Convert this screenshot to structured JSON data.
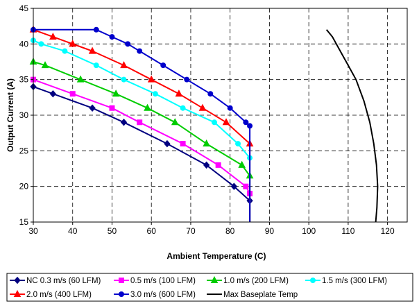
{
  "chart_data": {
    "type": "line",
    "title": "",
    "xlabel": "Ambient Temperature (C)",
    "ylabel": "Output Current (A)",
    "xlim": [
      30,
      125
    ],
    "ylim": [
      15,
      45
    ],
    "xticks": [
      30,
      40,
      50,
      60,
      70,
      80,
      90,
      100,
      110,
      120
    ],
    "yticks": [
      15,
      20,
      25,
      30,
      35,
      40,
      45
    ],
    "grid": true,
    "legend_position": "bottom",
    "series": [
      {
        "name": "NC 0.3 m/s (60 LFM)",
        "color": "#000080",
        "marker": "diamond",
        "x": [
          30,
          35,
          45,
          53,
          64,
          74,
          81,
          85,
          85
        ],
        "y": [
          34,
          33,
          31,
          29,
          26,
          23,
          20,
          18,
          15
        ]
      },
      {
        "name": "0.5 m/s (100 LFM)",
        "color": "#FF00FF",
        "marker": "square",
        "x": [
          30,
          40,
          50,
          57,
          68,
          77,
          84,
          85,
          85
        ],
        "y": [
          35,
          33,
          31,
          29,
          26,
          23,
          20,
          19,
          15
        ]
      },
      {
        "name": "1.0 m/s (200 LFM)",
        "color": "#00CC00",
        "marker": "triangle",
        "x": [
          30,
          33,
          42,
          51,
          59,
          66,
          74,
          83,
          85,
          85
        ],
        "y": [
          37.5,
          37,
          35,
          33,
          31,
          29,
          26,
          23,
          21.5,
          15
        ]
      },
      {
        "name": "1.5 m/s (300 LFM)",
        "color": "#00FFFF",
        "marker": "circle",
        "x": [
          30,
          32,
          38,
          46,
          53,
          61,
          68,
          76,
          82,
          85,
          85
        ],
        "y": [
          40.5,
          40,
          39,
          37,
          35,
          33,
          31,
          29,
          26,
          24,
          15
        ]
      },
      {
        "name": "2.0 m/s (400 LFM)",
        "color": "#FF0000",
        "marker": "triangle",
        "x": [
          30,
          35,
          40,
          45,
          53,
          60,
          67,
          73,
          79,
          85,
          85
        ],
        "y": [
          42,
          41,
          40,
          39,
          37,
          35,
          33,
          31,
          29,
          26,
          15
        ]
      },
      {
        "name": "3.0 m/s (600 LFM)",
        "color": "#0000CC",
        "marker": "circle",
        "x": [
          30,
          46,
          50,
          54,
          57,
          63,
          69,
          75,
          80,
          84,
          85,
          85
        ],
        "y": [
          42,
          42,
          41,
          40,
          39,
          37,
          35,
          33,
          31,
          29,
          28.5,
          15
        ]
      },
      {
        "name": "Max Baseplate Temp",
        "color": "#000000",
        "marker": "none",
        "x": [
          104.5,
          106,
          108,
          110,
          112,
          114,
          115.5,
          116.5,
          117.2,
          117.5,
          117.3,
          117
        ],
        "y": [
          42,
          41,
          39,
          37,
          35,
          32,
          29,
          26,
          23,
          20,
          17,
          15
        ]
      }
    ]
  }
}
